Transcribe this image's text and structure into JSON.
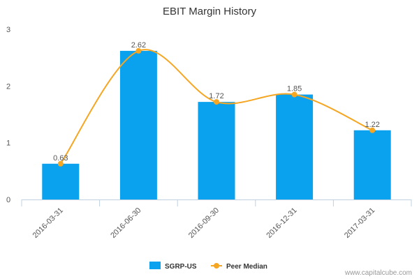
{
  "chart_data": {
    "type": "bar",
    "title": "EBIT Margin History",
    "xlabel": "",
    "ylabel": "",
    "categories": [
      "2016-03-31",
      "2016-06-30",
      "2016-09-30",
      "2016-12-31",
      "2017-03-31"
    ],
    "series": [
      {
        "name": "SGRP-US",
        "type": "bar",
        "color": "#0AA1EF",
        "values": [
          0.63,
          2.62,
          1.72,
          1.85,
          1.22
        ]
      },
      {
        "name": "Peer Median",
        "type": "line",
        "smooth": true,
        "color": "#F5A623",
        "values": [
          0.63,
          2.62,
          1.72,
          1.85,
          1.22
        ]
      }
    ],
    "data_labels": [
      "0.63",
      "2.62",
      "1.72",
      "1.85",
      "1.22"
    ],
    "ylim": [
      0,
      3
    ],
    "yticks": [
      0,
      1,
      2,
      3
    ],
    "grid": false,
    "legend_position": "bottom-center",
    "watermark": "www.capitalcube.com"
  }
}
